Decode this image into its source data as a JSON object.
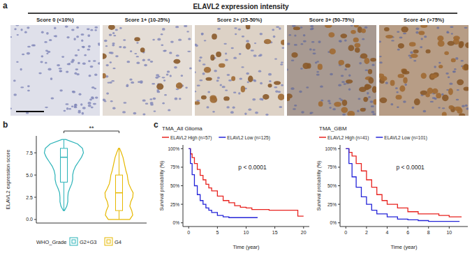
{
  "chart_data": [
    {
      "type": "image_grid",
      "title": "ELAVL2 expression intensity",
      "annotations": [
        "a"
      ],
      "categories": [
        "Score 0 (<10%)",
        "Score 1+ (10-25%)",
        "Score 2+ (25-50%)",
        "Score 3+ (50-75%)",
        "Score 4+ (>75%)"
      ],
      "colors": [
        "#dfe0ea",
        "#e4ddd6",
        "#ddd2c6",
        "#a89a92",
        "#b79d86"
      ]
    },
    {
      "type": "violin",
      "ylabel": "ELAVL2 expression score",
      "annotations": [
        "b",
        "**"
      ],
      "legend": "bottom",
      "legend_title": "WHO_Grade",
      "tick_labels": "y",
      "grid": false,
      "ylim": [
        -0.4,
        9.4
      ],
      "yticks": [
        {
          "value": 0,
          "label": "0.0"
        },
        {
          "value": 2.5,
          "label": "2.5"
        },
        {
          "value": 5,
          "label": "5.0"
        },
        {
          "value": 7.5,
          "label": "7.5"
        }
      ],
      "series": [
        {
          "name": "G2+G3",
          "color": "#2bb3b8",
          "violin": {
            "y": [
              1,
              1.5,
              2,
              2.5,
              3,
              3.5,
              4,
              4.5,
              5,
              5.5,
              6,
              6.5,
              7,
              7.5,
              8,
              8.5,
              9
            ],
            "density": [
              0.03,
              0.15,
              0.2,
              0.2,
              0.22,
              0.3,
              0.4,
              0.45,
              0.45,
              0.5,
              0.6,
              0.75,
              0.9,
              1.0,
              0.95,
              0.7,
              0.1
            ]
          },
          "box": {
            "min": 1,
            "q1": 4.2,
            "median": 7,
            "q3": 8,
            "max": 9
          }
        },
        {
          "name": "G4",
          "color": "#e6b800",
          "violin": {
            "y": [
              0,
              0.5,
              1,
              1.5,
              2,
              2.5,
              3,
              3.5,
              4,
              4.5,
              5,
              5.5,
              6,
              6.5,
              7,
              7.5,
              8
            ],
            "density": [
              0.55,
              0.7,
              0.65,
              0.55,
              0.6,
              0.7,
              0.72,
              0.6,
              0.5,
              0.45,
              0.42,
              0.35,
              0.3,
              0.25,
              0.2,
              0.12,
              0.03
            ]
          },
          "box": {
            "min": 0,
            "q1": 1,
            "median": 3,
            "q3": 5,
            "max": 8
          }
        }
      ]
    },
    {
      "type": "step",
      "title": "TMA_All Glioma",
      "xlabel": "Time (year)",
      "ylabel": "Survival probability (%)",
      "annotations": [
        "c",
        "p < 0.0001"
      ],
      "legend": "top",
      "grid": false,
      "xlim": [
        -1,
        21
      ],
      "xticks": [
        0,
        5,
        10,
        15,
        20
      ],
      "ylim": [
        -5,
        105
      ],
      "yticks": [
        {
          "value": 0,
          "label": "0%"
        },
        {
          "value": 25,
          "label": "25%"
        },
        {
          "value": 50,
          "label": "50%"
        },
        {
          "value": 75,
          "label": "75%"
        },
        {
          "value": 100,
          "label": "100%"
        }
      ],
      "series": [
        {
          "name": "ELAVL2 High (n=57)",
          "color": "#e8231f",
          "x": [
            0,
            0.3,
            0.6,
            1,
            1.5,
            2,
            2.5,
            3,
            3.5,
            4,
            5,
            6,
            7,
            8,
            9,
            10,
            11,
            12,
            14,
            19,
            20
          ],
          "values": [
            100,
            93,
            88,
            80,
            72,
            64,
            58,
            52,
            47,
            43,
            36,
            30,
            27,
            23,
            21,
            20,
            18,
            18,
            17,
            9,
            9
          ]
        },
        {
          "name": "ELAVL2 Low (n=125)",
          "color": "#2424d8",
          "x": [
            0,
            0.3,
            0.6,
            1,
            1.5,
            2,
            2.5,
            3,
            3.5,
            4,
            5,
            6,
            7,
            9,
            11,
            12
          ],
          "values": [
            100,
            80,
            65,
            50,
            38,
            30,
            25,
            20,
            17,
            14,
            10,
            8,
            7,
            7,
            7,
            7
          ]
        }
      ]
    },
    {
      "type": "step",
      "title": "TMA_GBM",
      "xlabel": "Time (year)",
      "ylabel": "Survival probability (%)",
      "annotations": [
        "p < 0.0001"
      ],
      "legend": "top",
      "grid": false,
      "xlim": [
        -0.56,
        11.8
      ],
      "xticks": [
        0,
        2,
        4,
        6,
        8,
        10
      ],
      "ylim": [
        -5,
        105
      ],
      "yticks": [
        {
          "value": 0,
          "label": "0%"
        },
        {
          "value": 25,
          "label": "25%"
        },
        {
          "value": 50,
          "label": "50%"
        },
        {
          "value": 75,
          "label": "75%"
        },
        {
          "value": 100,
          "label": "100%"
        }
      ],
      "series": [
        {
          "name": "ELAVL2 High (n=41)",
          "color": "#e8231f",
          "x": [
            0,
            0.3,
            0.6,
            1,
            1.5,
            2,
            2.5,
            3,
            3.5,
            4,
            5,
            6,
            7,
            9,
            10,
            11.2
          ],
          "values": [
            100,
            95,
            90,
            80,
            70,
            58,
            48,
            38,
            30,
            25,
            20,
            15,
            12,
            10,
            8,
            8
          ]
        },
        {
          "name": "ELAVL2 Low (n=101)",
          "color": "#2424d8",
          "x": [
            0,
            0.3,
            0.6,
            1,
            1.5,
            2,
            2.5,
            3,
            4,
            5,
            6,
            7,
            8,
            11
          ],
          "values": [
            100,
            80,
            62,
            48,
            35,
            25,
            17,
            12,
            8,
            5,
            4,
            3,
            2,
            2
          ]
        }
      ]
    }
  ]
}
